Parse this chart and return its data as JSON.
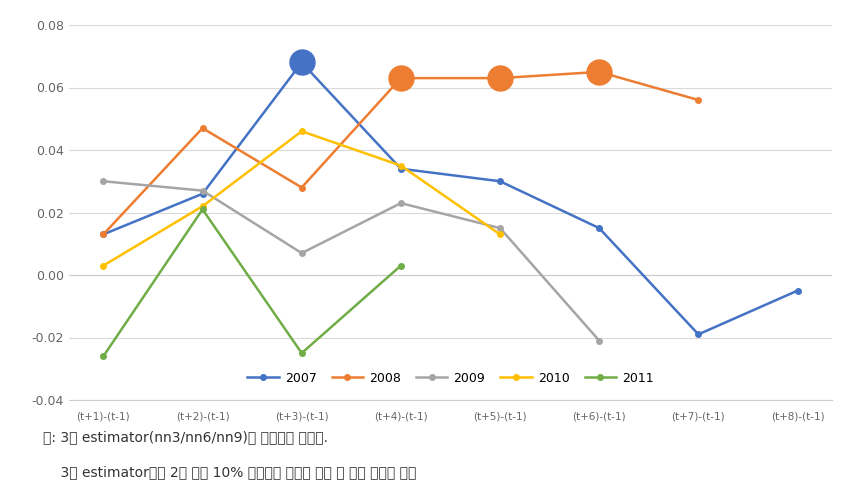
{
  "x_labels": [
    "(t+1)-(t-1)",
    "(t+2)-(t-1)",
    "(t+3)-(t-1)",
    "(t+4)-(t-1)",
    "(t+5)-(t-1)",
    "(t+6)-(t-1)",
    "(t+7)-(t-1)",
    "(t+8)-(t-1)"
  ],
  "series": {
    "2007": {
      "values": [
        0.013,
        0.026,
        0.068,
        0.034,
        0.03,
        0.015,
        -0.019,
        -0.005
      ],
      "color": "#4472C4",
      "big_dots": [
        2
      ]
    },
    "2008": {
      "values": [
        0.013,
        0.047,
        0.028,
        0.063,
        0.063,
        0.065,
        0.056,
        null
      ],
      "color": "#ED7D31",
      "big_dots": [
        3,
        4,
        5
      ]
    },
    "2009": {
      "values": [
        0.03,
        0.027,
        0.007,
        0.023,
        0.015,
        -0.021,
        null,
        null
      ],
      "color": "#A5A5A5",
      "big_dots": []
    },
    "2010": {
      "values": [
        0.003,
        0.022,
        0.046,
        0.035,
        0.013,
        null,
        null,
        null
      ],
      "color": "#FFC000",
      "big_dots": []
    },
    "2011": {
      "values": [
        -0.026,
        0.021,
        -0.025,
        0.003,
        null,
        null,
        null,
        null
      ],
      "color": "#70AD47",
      "big_dots": []
    }
  },
  "ylim": [
    -0.04,
    0.08
  ],
  "yticks": [
    -0.04,
    -0.02,
    0,
    0.02,
    0.04,
    0.06,
    0.08
  ],
  "background_color": "#FFFFFF",
  "plot_background": "#FFFFFF",
  "grid_color": "#D9D9D9",
  "legend_labels": [
    "2007",
    "2008",
    "2009",
    "2010",
    "2011"
  ],
  "footnote_line1": "주: 3개 estimator(nn3/nn6/nn9)의 평균치를 나타냄.",
  "footnote_line2": "    3개 estimator에서 2개 이상 10% 수준에서 유의할 경우 큰 원형 점으로 표시"
}
